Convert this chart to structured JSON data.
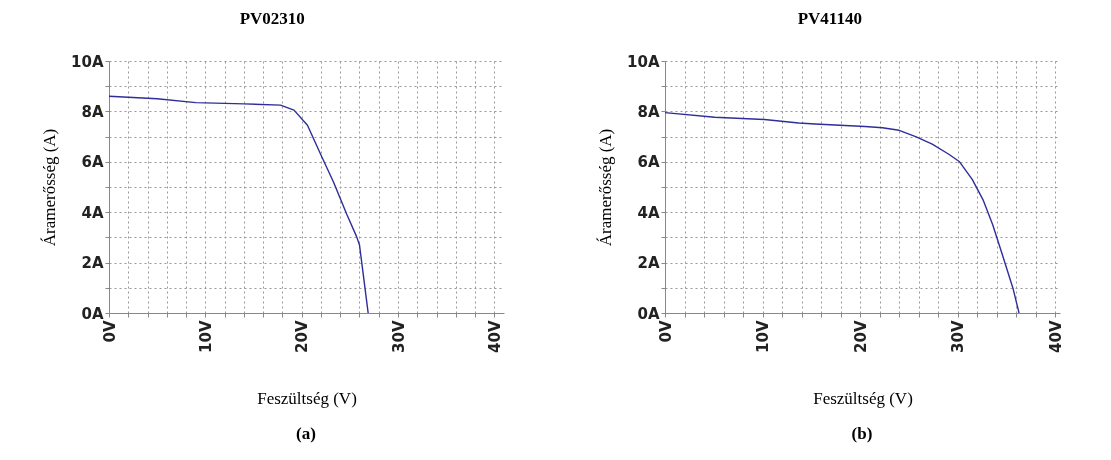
{
  "chart_data": [
    {
      "type": "line",
      "title": "PV02310",
      "xlabel": "Feszültség (V)",
      "ylabel": "Áramerősség (A)",
      "annotations": [
        "(a)"
      ],
      "x": [
        0,
        5,
        9,
        14,
        17.8,
        19.2,
        20.6,
        22,
        23.3,
        24.7,
        25.7,
        26,
        26.4,
        26.7,
        26.9
      ],
      "series": [
        {
          "color": "#2e2e9a",
          "values": [
            8.6,
            8.5,
            8.35,
            8.3,
            8.25,
            8.05,
            7.45,
            6.27,
            5.2,
            3.9,
            3.03,
            2.7,
            1.5,
            0.6,
            0
          ]
        }
      ],
      "xlim": [
        0,
        41
      ],
      "ylim": [
        0,
        10
      ],
      "xticks": [
        {
          "value": 0,
          "label": "0V"
        },
        {
          "value": 2,
          "label": null
        },
        {
          "value": 4,
          "label": null
        },
        {
          "value": 6,
          "label": null
        },
        {
          "value": 8,
          "label": null
        },
        {
          "value": 10,
          "label": "10V"
        },
        {
          "value": 12,
          "label": null
        },
        {
          "value": 14,
          "label": null
        },
        {
          "value": 16,
          "label": null
        },
        {
          "value": 18,
          "label": null
        },
        {
          "value": 20,
          "label": "20V"
        },
        {
          "value": 22,
          "label": null
        },
        {
          "value": 24,
          "label": null
        },
        {
          "value": 26,
          "label": null
        },
        {
          "value": 28,
          "label": null
        },
        {
          "value": 30,
          "label": "30V"
        },
        {
          "value": 32,
          "label": null
        },
        {
          "value": 34,
          "label": null
        },
        {
          "value": 36,
          "label": null
        },
        {
          "value": 38,
          "label": null
        },
        {
          "value": 40,
          "label": "40V"
        }
      ],
      "yticks": [
        {
          "value": 0,
          "label": "0A"
        },
        {
          "value": 1,
          "label": null
        },
        {
          "value": 2,
          "label": "2A"
        },
        {
          "value": 3,
          "label": null
        },
        {
          "value": 4,
          "label": "4A"
        },
        {
          "value": 5,
          "label": null
        },
        {
          "value": 6,
          "label": "6A"
        },
        {
          "value": 7,
          "label": null
        },
        {
          "value": 8,
          "label": "8A"
        },
        {
          "value": 9,
          "label": null
        },
        {
          "value": 10,
          "label": "10A"
        }
      ],
      "grid": true,
      "line_style": "solid",
      "marker": "none"
    },
    {
      "type": "line",
      "title": "PV41140",
      "xlabel": "Feszültség (V)",
      "ylabel": "Áramerősség (A)",
      "annotations": [
        "(b)"
      ],
      "x": [
        0,
        5.1,
        10.2,
        13.7,
        15.4,
        20.5,
        22.3,
        24,
        25.7,
        27.4,
        29.1,
        30.2,
        31.5,
        32.6,
        33.6,
        34.6,
        35.7,
        36.3
      ],
      "series": [
        {
          "color": "#2e2e9a",
          "values": [
            7.95,
            7.77,
            7.68,
            7.54,
            7.5,
            7.4,
            7.35,
            7.25,
            7,
            6.7,
            6.3,
            6,
            5.3,
            4.5,
            3.5,
            2.3,
            0.95,
            0
          ]
        }
      ],
      "xlim": [
        0,
        40.5
      ],
      "ylim": [
        0,
        10
      ],
      "xticks": [
        {
          "value": 0,
          "label": "0V"
        },
        {
          "value": 2,
          "label": null
        },
        {
          "value": 4,
          "label": null
        },
        {
          "value": 6,
          "label": null
        },
        {
          "value": 8,
          "label": null
        },
        {
          "value": 10,
          "label": "10V"
        },
        {
          "value": 12,
          "label": null
        },
        {
          "value": 14,
          "label": null
        },
        {
          "value": 16,
          "label": null
        },
        {
          "value": 18,
          "label": null
        },
        {
          "value": 20,
          "label": "20V"
        },
        {
          "value": 22,
          "label": null
        },
        {
          "value": 24,
          "label": null
        },
        {
          "value": 26,
          "label": null
        },
        {
          "value": 28,
          "label": null
        },
        {
          "value": 30,
          "label": "30V"
        },
        {
          "value": 32,
          "label": null
        },
        {
          "value": 34,
          "label": null
        },
        {
          "value": 36,
          "label": null
        },
        {
          "value": 38,
          "label": null
        },
        {
          "value": 40,
          "label": "40V"
        }
      ],
      "yticks": [
        {
          "value": 0,
          "label": "0A"
        },
        {
          "value": 1,
          "label": null
        },
        {
          "value": 2,
          "label": "2A"
        },
        {
          "value": 3,
          "label": null
        },
        {
          "value": 4,
          "label": "4A"
        },
        {
          "value": 5,
          "label": null
        },
        {
          "value": 6,
          "label": "6A"
        },
        {
          "value": 7,
          "label": null
        },
        {
          "value": 8,
          "label": "8A"
        },
        {
          "value": 9,
          "label": null
        },
        {
          "value": 10,
          "label": "10A"
        }
      ],
      "grid": true,
      "line_style": "solid",
      "marker": "none"
    }
  ]
}
